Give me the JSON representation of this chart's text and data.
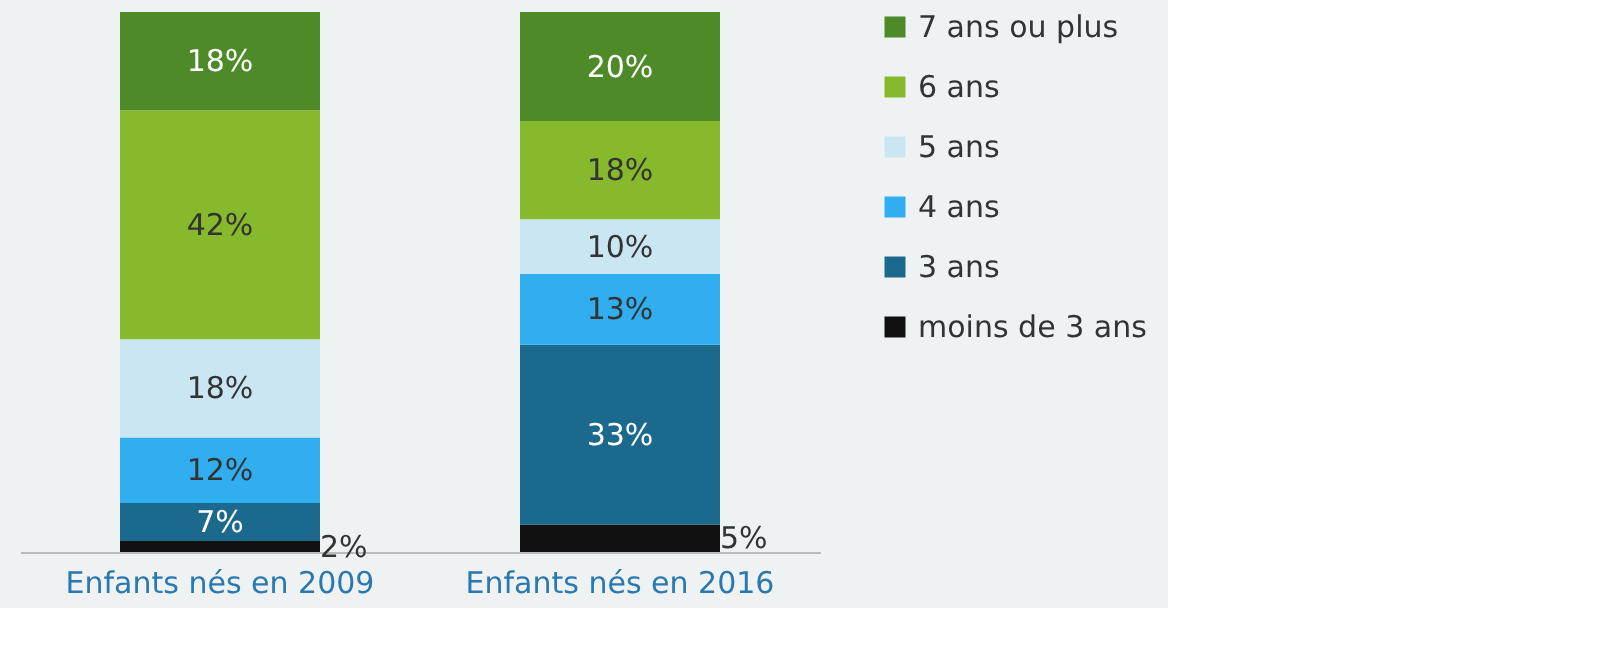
{
  "chart_data": {
    "type": "bar",
    "stacked": true,
    "categories": [
      "Enfants nés en 2009",
      "Enfants nés en 2016"
    ],
    "series": [
      {
        "name": "moins de 3 ans",
        "color": "#111111",
        "values": [
          2,
          5
        ],
        "value_labels": [
          "2%",
          "5%"
        ]
      },
      {
        "name": "3 ans",
        "color": "#1b6a8e",
        "values": [
          7,
          33
        ],
        "value_labels": [
          "7%",
          "33%"
        ]
      },
      {
        "name": "4 ans",
        "color": "#30aef0",
        "values": [
          12,
          13
        ],
        "value_labels": [
          "12%",
          "13%"
        ]
      },
      {
        "name": "5 ans",
        "color": "#cbe6f3",
        "values": [
          18,
          10
        ],
        "value_labels": [
          "18%",
          "10%"
        ]
      },
      {
        "name": "6 ans",
        "color": "#86b92b",
        "values": [
          42,
          18
        ],
        "value_labels": [
          "42%",
          "18%"
        ]
      },
      {
        "name": "7 ans ou plus",
        "color": "#4e8a28",
        "values": [
          18,
          20
        ],
        "value_labels": [
          "18%",
          "20%"
        ]
      }
    ],
    "legend": "right",
    "grid": false
  }
}
